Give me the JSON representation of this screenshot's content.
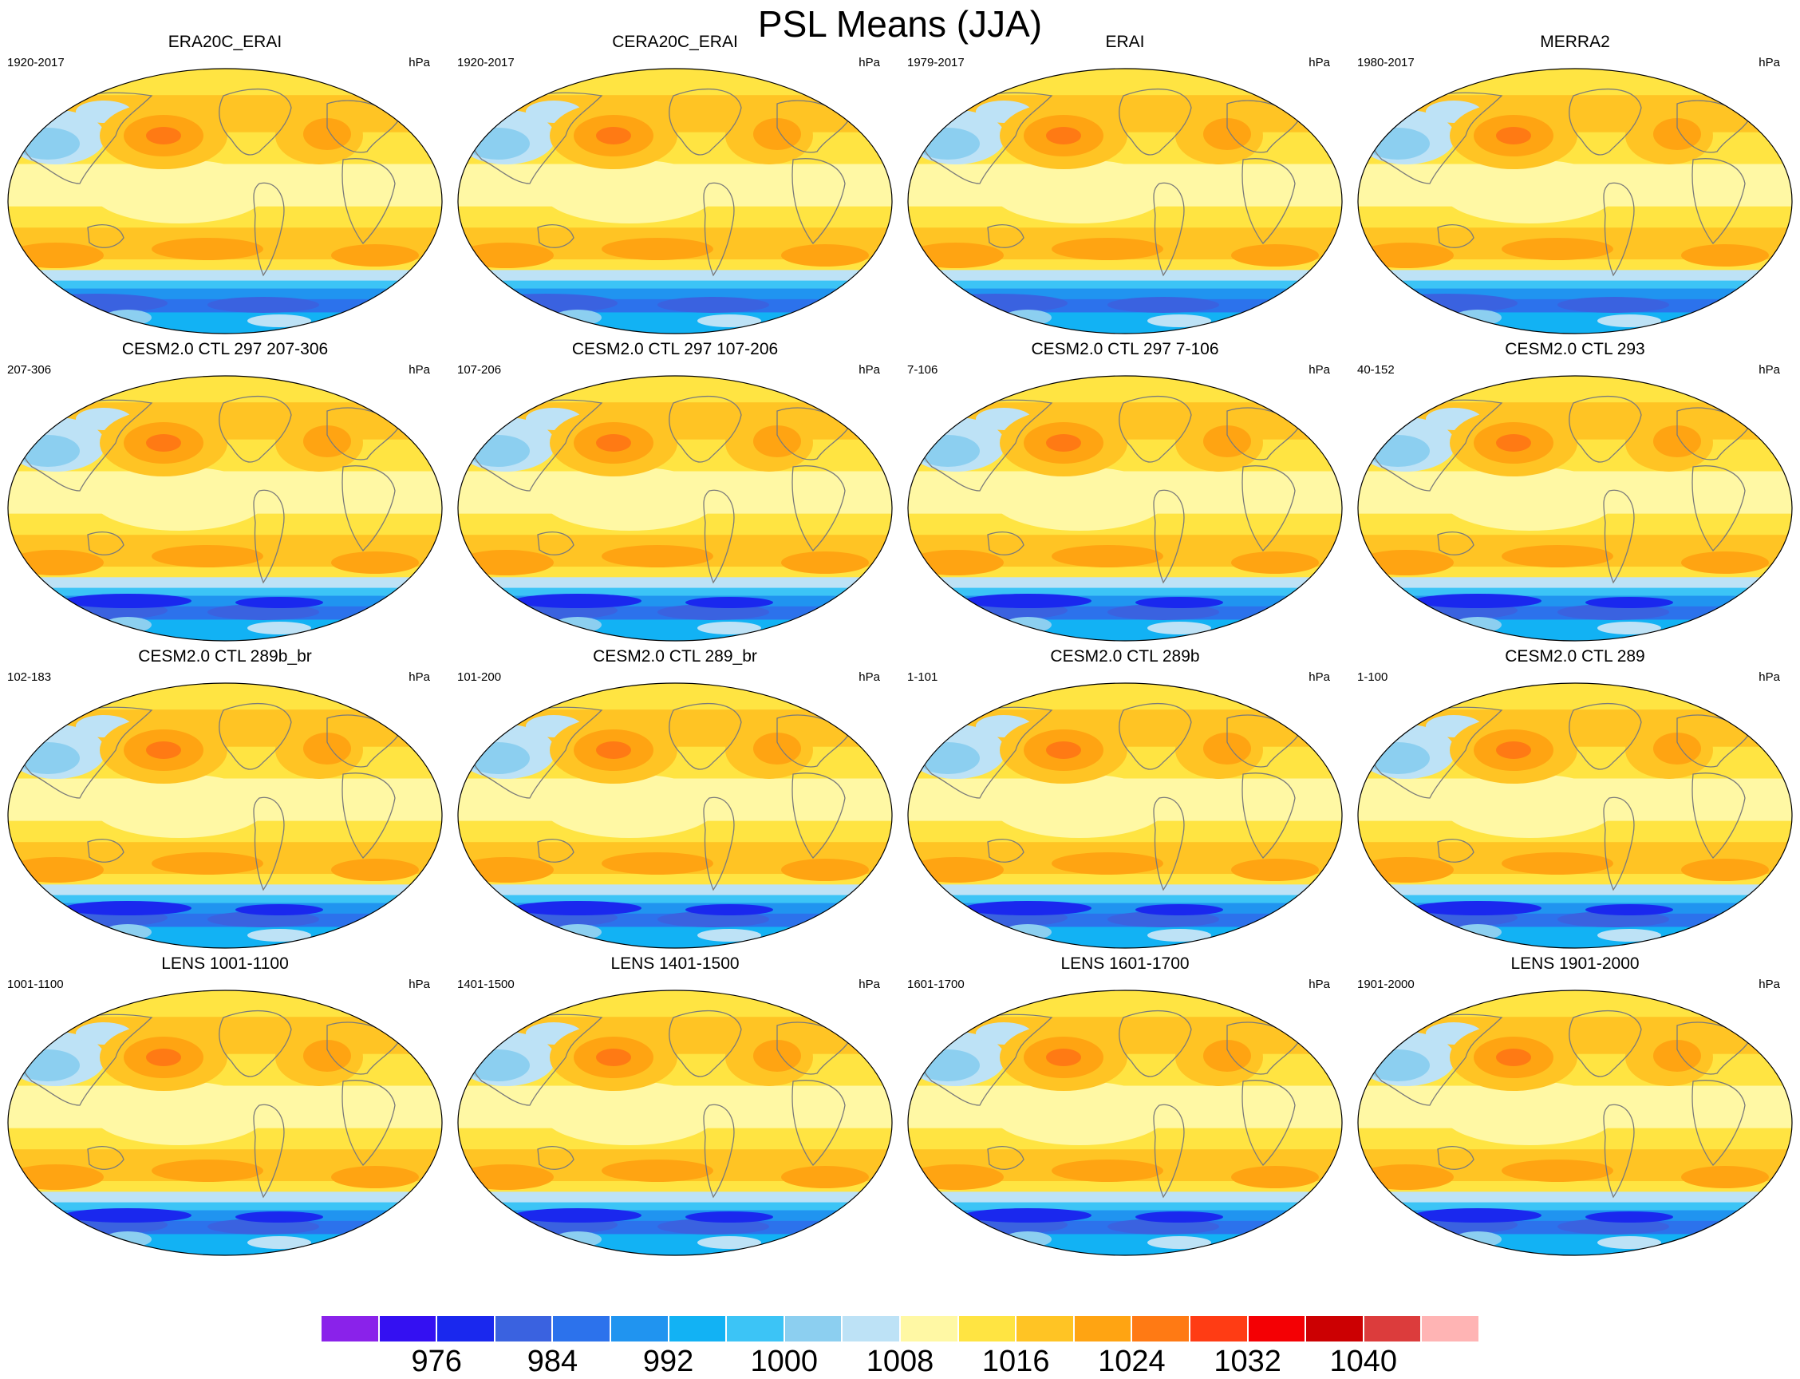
{
  "title": "PSL Means (JJA)",
  "panels": [
    {
      "title": "ERA20C_ERAI",
      "left": "1920-2017",
      "right": "hPa"
    },
    {
      "title": "CERA20C_ERAI",
      "left": "1920-2017",
      "right": "hPa"
    },
    {
      "title": "ERAI",
      "left": "1979-2017",
      "right": "hPa"
    },
    {
      "title": "MERRA2",
      "left": "1980-2017",
      "right": "hPa"
    },
    {
      "title": "CESM2.0 CTL 297 207-306",
      "left": "207-306",
      "right": "hPa"
    },
    {
      "title": "CESM2.0 CTL 297 107-206",
      "left": "107-206",
      "right": "hPa"
    },
    {
      "title": "CESM2.0 CTL 297 7-106",
      "left": "7-106",
      "right": "hPa"
    },
    {
      "title": "CESM2.0 CTL 293",
      "left": "40-152",
      "right": "hPa"
    },
    {
      "title": "CESM2.0 CTL 289b_br",
      "left": "102-183",
      "right": "hPa"
    },
    {
      "title": "CESM2.0 CTL 289_br",
      "left": "101-200",
      "right": "hPa"
    },
    {
      "title": "CESM2.0 CTL 289b",
      "left": "1-101",
      "right": "hPa"
    },
    {
      "title": "CESM2.0 CTL 289",
      "left": "1-100",
      "right": "hPa"
    },
    {
      "title": "LENS 1001-1100",
      "left": "1001-1100",
      "right": "hPa"
    },
    {
      "title": "LENS 1401-1500",
      "left": "1401-1500",
      "right": "hPa"
    },
    {
      "title": "LENS 1601-1700",
      "left": "1601-1700",
      "right": "hPa"
    },
    {
      "title": "LENS 1901-2000",
      "left": "1901-2000",
      "right": "hPa"
    }
  ],
  "colorbar": {
    "colors": [
      "#8a22ea",
      "#3410f2",
      "#1a28ee",
      "#3a62e0",
      "#2c72ec",
      "#2094f0",
      "#12b2f4",
      "#3cc4f6",
      "#8ccff0",
      "#bde2f6",
      "#fff8a4",
      "#ffe442",
      "#ffc424",
      "#ffa412",
      "#ff7a14",
      "#ff3c14",
      "#f40004",
      "#cc0002",
      "#dc3c3c",
      "#ffb4b4"
    ],
    "tick_labels": [
      "976",
      "984",
      "992",
      "1000",
      "1008",
      "1016",
      "1024",
      "1032",
      "1040"
    ],
    "land_outline_color": "#7a7a7a"
  }
}
